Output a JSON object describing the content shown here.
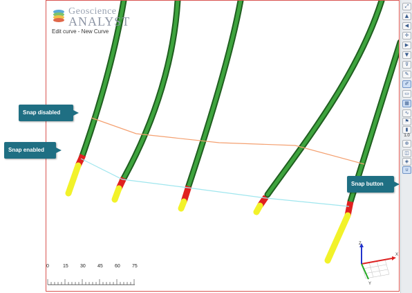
{
  "app": {
    "logo_line1": "Geoscience",
    "logo_line2": "ANALYST"
  },
  "viewport": {
    "caption": "Edit curve - New Curve"
  },
  "scale": {
    "ticks": [
      "0",
      "15",
      "30",
      "45",
      "60",
      "75"
    ]
  },
  "axes": {
    "z_label": "Z",
    "x_label": "X",
    "y_label": "Y"
  },
  "toolbar": {
    "zoom_value": "1.0",
    "buttons": [
      "home-view-icon",
      "rotate-up-icon",
      "rotate-left-icon",
      "pan-icon",
      "rotate-right-icon",
      "rotate-down-icon",
      "filter-icon",
      "pen-icon",
      "snap-grid-icon",
      "ruler-icon",
      "grid-icon",
      "curve-edit-icon",
      "flag-icon",
      "colorbar-icon",
      "zoom-icon",
      "camera-icon",
      "shield-icon",
      "snap-magnet-icon"
    ]
  },
  "callouts": {
    "snap_disabled": "Snap disabled",
    "snap_enabled": "Snap enabled",
    "snap_button": "Snap button"
  },
  "colors": {
    "pipe_green": "#2e8b2e",
    "pipe_red": "#e02020",
    "pipe_yellow": "#f2f22a",
    "curve_disabled": "#f4a070",
    "curve_enabled": "#9fe6ee",
    "callout_bg": "#1f6f83",
    "border": "#d9534f"
  }
}
